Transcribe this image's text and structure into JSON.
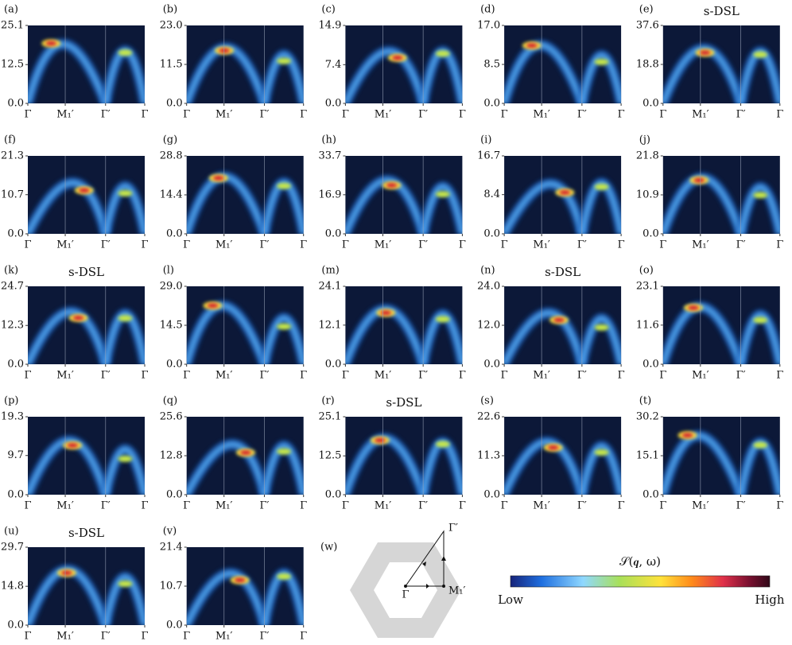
{
  "chart_data": [
    {
      "type": "heatmap",
      "label": "(a)",
      "categories": [
        "Γ",
        "M₁′",
        "Γ′",
        "Γ"
      ],
      "ylim": [
        0,
        25.1
      ],
      "yticks": [
        {
          "value": 0,
          "label": "0.0"
        },
        12.5,
        25.1
      ]
    },
    {
      "type": "heatmap",
      "label": "(b)",
      "categories": [
        "Γ",
        "M₁′",
        "Γ′",
        "Γ"
      ],
      "ylim": [
        0,
        23
      ],
      "yticks": [
        {
          "value": 0,
          "label": "0.0"
        },
        11.5,
        {
          "value": 23,
          "label": "23.0"
        }
      ]
    },
    {
      "type": "heatmap",
      "label": "(c)",
      "categories": [
        "Γ",
        "M₁′",
        "Γ′",
        "Γ"
      ],
      "ylim": [
        0,
        14.9
      ],
      "yticks": [
        {
          "value": 0,
          "label": "0.0"
        },
        7.4,
        14.9
      ]
    },
    {
      "type": "heatmap",
      "label": "(d)",
      "categories": [
        "Γ",
        "M₁′",
        "Γ′",
        "Γ"
      ],
      "ylim": [
        0,
        17
      ],
      "yticks": [
        {
          "value": 0,
          "label": "0.0"
        },
        8.5,
        {
          "value": 17,
          "label": "17.0"
        }
      ]
    },
    {
      "type": "heatmap",
      "label": "(e)",
      "title": "s-DSL",
      "categories": [
        "Γ",
        "M₁′",
        "Γ′",
        "Γ"
      ],
      "ylim": [
        0,
        37.6
      ],
      "yticks": [
        {
          "value": 0,
          "label": "0.0"
        },
        18.8,
        37.6
      ]
    },
    {
      "type": "heatmap",
      "label": "(f)",
      "categories": [
        "Γ",
        "M₁′",
        "Γ′",
        "Γ"
      ],
      "ylim": [
        0,
        21.3
      ],
      "yticks": [
        {
          "value": 0,
          "label": "0.0"
        },
        10.7,
        21.3
      ]
    },
    {
      "type": "heatmap",
      "label": "(g)",
      "categories": [
        "Γ",
        "M₁′",
        "Γ′",
        "Γ"
      ],
      "ylim": [
        0,
        28.8
      ],
      "yticks": [
        {
          "value": 0,
          "label": "0.0"
        },
        14.4,
        28.8
      ]
    },
    {
      "type": "heatmap",
      "label": "(h)",
      "categories": [
        "Γ",
        "M₁′",
        "Γ′",
        "Γ"
      ],
      "ylim": [
        0,
        33.7
      ],
      "yticks": [
        {
          "value": 0,
          "label": "0.0"
        },
        16.9,
        33.7
      ]
    },
    {
      "type": "heatmap",
      "label": "(i)",
      "categories": [
        "Γ",
        "M₁′",
        "Γ′",
        "Γ"
      ],
      "ylim": [
        0,
        16.7
      ],
      "yticks": [
        {
          "value": 0,
          "label": "0.0"
        },
        8.4,
        16.7
      ]
    },
    {
      "type": "heatmap",
      "label": "(j)",
      "categories": [
        "Γ",
        "M₁′",
        "Γ′",
        "Γ"
      ],
      "ylim": [
        0,
        21.8
      ],
      "yticks": [
        {
          "value": 0,
          "label": "0.0"
        },
        10.9,
        21.8
      ]
    },
    {
      "type": "heatmap",
      "label": "(k)",
      "title": "s-DSL",
      "categories": [
        "Γ",
        "M₁′",
        "Γ′",
        "Γ"
      ],
      "ylim": [
        0,
        24.7
      ],
      "yticks": [
        {
          "value": 0,
          "label": "0.0"
        },
        12.3,
        24.7
      ]
    },
    {
      "type": "heatmap",
      "label": "(l)",
      "categories": [
        "Γ",
        "M₁′",
        "Γ′",
        "Γ"
      ],
      "ylim": [
        0,
        29
      ],
      "yticks": [
        {
          "value": 0,
          "label": "0.0"
        },
        14.5,
        {
          "value": 29,
          "label": "29.0"
        }
      ]
    },
    {
      "type": "heatmap",
      "label": "(m)",
      "categories": [
        "Γ",
        "M₁′",
        "Γ′",
        "Γ"
      ],
      "ylim": [
        0,
        24.1
      ],
      "yticks": [
        {
          "value": 0,
          "label": "0.0"
        },
        12.1,
        24.1
      ]
    },
    {
      "type": "heatmap",
      "label": "(n)",
      "title": "s-DSL",
      "categories": [
        "Γ",
        "M₁′",
        "Γ′",
        "Γ"
      ],
      "ylim": [
        0,
        24
      ],
      "yticks": [
        {
          "value": 0,
          "label": "0.0"
        },
        {
          "value": 12,
          "label": "12.0"
        },
        {
          "value": 24,
          "label": "24.0"
        }
      ]
    },
    {
      "type": "heatmap",
      "label": "(o)",
      "categories": [
        "Γ",
        "M₁′",
        "Γ′",
        "Γ"
      ],
      "ylim": [
        0,
        23.1
      ],
      "yticks": [
        {
          "value": 0,
          "label": "0.0"
        },
        11.6,
        23.1
      ]
    },
    {
      "type": "heatmap",
      "label": "(p)",
      "categories": [
        "Γ",
        "M₁′",
        "Γ′",
        "Γ"
      ],
      "ylim": [
        0,
        19.3
      ],
      "yticks": [
        {
          "value": 0,
          "label": "0.0"
        },
        9.7,
        19.3
      ]
    },
    {
      "type": "heatmap",
      "label": "(q)",
      "categories": [
        "Γ",
        "M₁′",
        "Γ′",
        "Γ"
      ],
      "ylim": [
        0,
        25.6
      ],
      "yticks": [
        {
          "value": 0,
          "label": "0.0"
        },
        12.8,
        25.6
      ]
    },
    {
      "type": "heatmap",
      "label": "(r)",
      "title": "s-DSL",
      "categories": [
        "Γ",
        "M₁′",
        "Γ′",
        "Γ"
      ],
      "ylim": [
        0,
        25.1
      ],
      "yticks": [
        {
          "value": 0,
          "label": "0.0"
        },
        12.5,
        25.1
      ]
    },
    {
      "type": "heatmap",
      "label": "(s)",
      "categories": [
        "Γ",
        "M₁′",
        "Γ′",
        "Γ"
      ],
      "ylim": [
        0,
        22.6
      ],
      "yticks": [
        {
          "value": 0,
          "label": "0.0"
        },
        11.3,
        22.6
      ]
    },
    {
      "type": "heatmap",
      "label": "(t)",
      "categories": [
        "Γ",
        "M₁′",
        "Γ′",
        "Γ"
      ],
      "ylim": [
        0,
        30.2
      ],
      "yticks": [
        {
          "value": 0,
          "label": "0.0"
        },
        15.1,
        30.2
      ]
    },
    {
      "type": "heatmap",
      "label": "(u)",
      "title": "s-DSL",
      "categories": [
        "Γ",
        "M₁′",
        "Γ′",
        "Γ"
      ],
      "ylim": [
        0,
        29.7
      ],
      "yticks": [
        {
          "value": 0,
          "label": "0.0"
        },
        14.8,
        29.7
      ]
    },
    {
      "type": "heatmap",
      "label": "(v)",
      "categories": [
        "Γ",
        "M₁′",
        "Γ′",
        "Γ"
      ],
      "ylim": [
        0,
        21.4
      ],
      "yticks": [
        {
          "value": 0,
          "label": "0.0"
        },
        10.7,
        21.4
      ]
    }
  ],
  "brillouin_zone": {
    "label": "(w)",
    "points": [
      "Γ",
      "M₁′",
      "Γ′"
    ]
  },
  "colorbar": {
    "label": "𝒮(𝒒, ω)",
    "low": "Low",
    "high": "High"
  }
}
